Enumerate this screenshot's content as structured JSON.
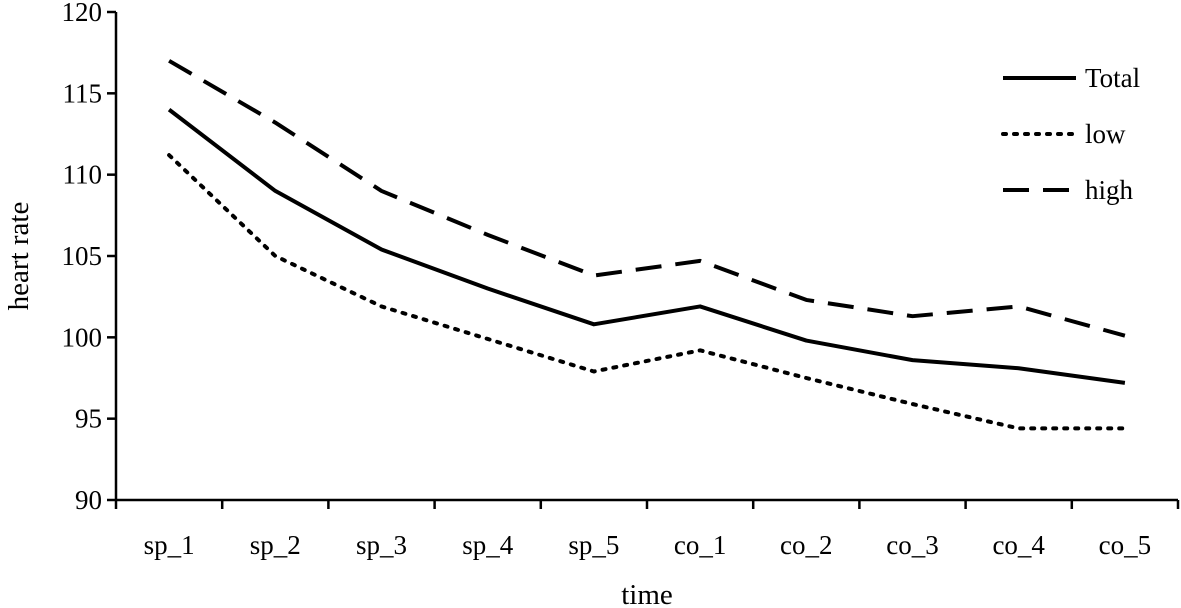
{
  "chart_data": {
    "type": "line",
    "title": "",
    "xlabel": "time",
    "ylabel": "heart rate",
    "categories": [
      "sp_1",
      "sp_2",
      "sp_3",
      "sp_4",
      "sp_5",
      "co_1",
      "co_2",
      "co_3",
      "co_4",
      "co_5"
    ],
    "ylim": [
      90,
      120
    ],
    "yticks": [
      90,
      95,
      100,
      105,
      110,
      115,
      120
    ],
    "grid": false,
    "legend_position": "top-right",
    "series": [
      {
        "name": "Total",
        "style": "solid",
        "color": "#000000",
        "values": [
          114.0,
          109.0,
          105.4,
          103.0,
          100.8,
          101.9,
          99.8,
          98.6,
          98.1,
          97.2
        ]
      },
      {
        "name": "low",
        "style": "dotted",
        "color": "#000000",
        "values": [
          111.2,
          105.0,
          101.9,
          99.9,
          97.9,
          99.2,
          97.5,
          95.9,
          94.4,
          94.4
        ]
      },
      {
        "name": "high",
        "style": "dashed",
        "color": "#000000",
        "values": [
          117.0,
          113.2,
          109.0,
          106.3,
          103.8,
          104.7,
          102.3,
          101.3,
          101.9,
          100.1
        ]
      }
    ]
  }
}
